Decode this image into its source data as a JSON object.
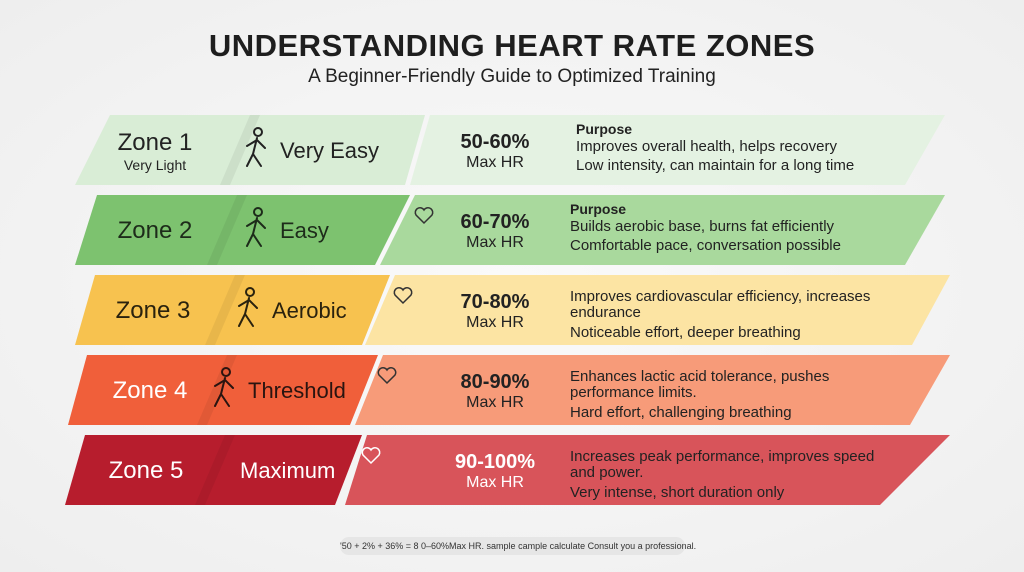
{
  "header": {
    "title": "UNDERSTANDING HEART RATE ZONES",
    "subtitle": "A Beginner-Friendly Guide to Optimized Training"
  },
  "zones": [
    {
      "name": "Zone 1",
      "sublabel": "Very Light",
      "intensity": "Very Easy",
      "range": "50-60%",
      "range_unit": "Max HR",
      "heading": "Purpose",
      "lines": [
        "Improves overall health, helps recovery",
        "Low intensity, can maintain for a long time"
      ]
    },
    {
      "name": "Zone 2",
      "intensity": "Easy",
      "range": "60-70%",
      "range_unit": "Max HR",
      "heading": "Purpose",
      "lines": [
        "Builds aerobic base, burns fat efficiently",
        "Comfortable pace, conversation possible"
      ]
    },
    {
      "name": "Zone 3",
      "intensity": "Aerobic",
      "range": "70-80%",
      "range_unit": "Max HR",
      "lines": [
        "Improves cardiovascular efficiency, increases endurance",
        "Noticeable effort, deeper breathing"
      ]
    },
    {
      "name": "Zone 4",
      "intensity": "Threshold",
      "range": "80-90%",
      "range_unit": "Max HR",
      "lines": [
        "Enhances lactic acid tolerance, pushes performance limits.",
        "Hard effort, challenging breathing"
      ]
    },
    {
      "name": "Zone 5",
      "intensity": "Maximum",
      "range": "90-100%",
      "range_unit": "Max HR",
      "lines": [
        "Increases peak performance, improves speed and power.",
        "Very intense, short duration only"
      ]
    }
  ],
  "footnote": "'50 + 2% + 36% = 8 0–60%Max HR. sample cample calculate Consult you a professional."
}
